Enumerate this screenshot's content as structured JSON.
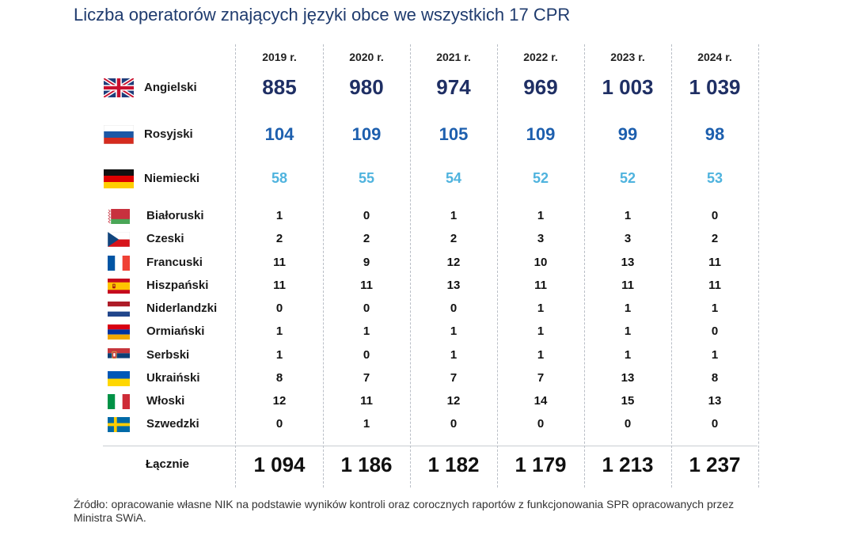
{
  "title": "Liczba operatorów znających języki obce we wszystkich 17 CPR",
  "source": "Źródło: opracowanie własne NIK na podstawie wyników kontroli oraz corocznych raportów z funkcjonowania SPR opracowanych przez Ministra SWiA.",
  "chart_data": {
    "type": "table",
    "title": "Liczba operatorów znających języki obce we wszystkich 17 CPR",
    "columns": [
      "2019 r.",
      "2020 r.",
      "2021 r.",
      "2022 r.",
      "2023 r.",
      "2024 r."
    ],
    "rows": [
      {
        "language": "Angielski",
        "flag": "uk-flag-icon",
        "values": [
          "885",
          "980",
          "974",
          "969",
          "1 003",
          "1 039"
        ]
      },
      {
        "language": "Rosyjski",
        "flag": "russia-flag-icon",
        "values": [
          "104",
          "109",
          "105",
          "109",
          "99",
          "98"
        ]
      },
      {
        "language": "Niemiecki",
        "flag": "germany-flag-icon",
        "values": [
          "58",
          "55",
          "54",
          "52",
          "52",
          "53"
        ]
      },
      {
        "language": "Białoruski",
        "flag": "belarus-flag-icon",
        "values": [
          "1",
          "0",
          "1",
          "1",
          "1",
          "0"
        ]
      },
      {
        "language": "Czeski",
        "flag": "czechia-flag-icon",
        "values": [
          "2",
          "2",
          "2",
          "3",
          "3",
          "2"
        ]
      },
      {
        "language": "Francuski",
        "flag": "france-flag-icon",
        "values": [
          "11",
          "9",
          "12",
          "10",
          "13",
          "11"
        ]
      },
      {
        "language": "Hiszpański",
        "flag": "spain-flag-icon",
        "values": [
          "11",
          "11",
          "13",
          "11",
          "11",
          "11"
        ]
      },
      {
        "language": "Niderlandzki",
        "flag": "netherlands-flag-icon",
        "values": [
          "0",
          "0",
          "0",
          "1",
          "1",
          "1"
        ]
      },
      {
        "language": "Ormiański",
        "flag": "armenia-flag-icon",
        "values": [
          "1",
          "1",
          "1",
          "1",
          "1",
          "0"
        ]
      },
      {
        "language": "Serbski",
        "flag": "serbia-flag-icon",
        "values": [
          "1",
          "0",
          "1",
          "1",
          "1",
          "1"
        ]
      },
      {
        "language": "Ukraiński",
        "flag": "ukraine-flag-icon",
        "values": [
          "8",
          "7",
          "7",
          "7",
          "13",
          "8"
        ]
      },
      {
        "language": "Włoski",
        "flag": "italy-flag-icon",
        "values": [
          "12",
          "11",
          "12",
          "14",
          "15",
          "13"
        ]
      },
      {
        "language": "Szwedzki",
        "flag": "sweden-flag-icon",
        "values": [
          "0",
          "1",
          "0",
          "0",
          "0",
          "0"
        ]
      }
    ],
    "total": {
      "label": "Łącznie",
      "values": [
        "1 094",
        "1 186",
        "1 182",
        "1 179",
        "1 213",
        "1 237"
      ]
    },
    "colors": {
      "angielski": "#1f2f64",
      "rosyjski": "#1d5fae",
      "niemiecki": "#4fb3de",
      "title": "#1f3b6e"
    }
  }
}
